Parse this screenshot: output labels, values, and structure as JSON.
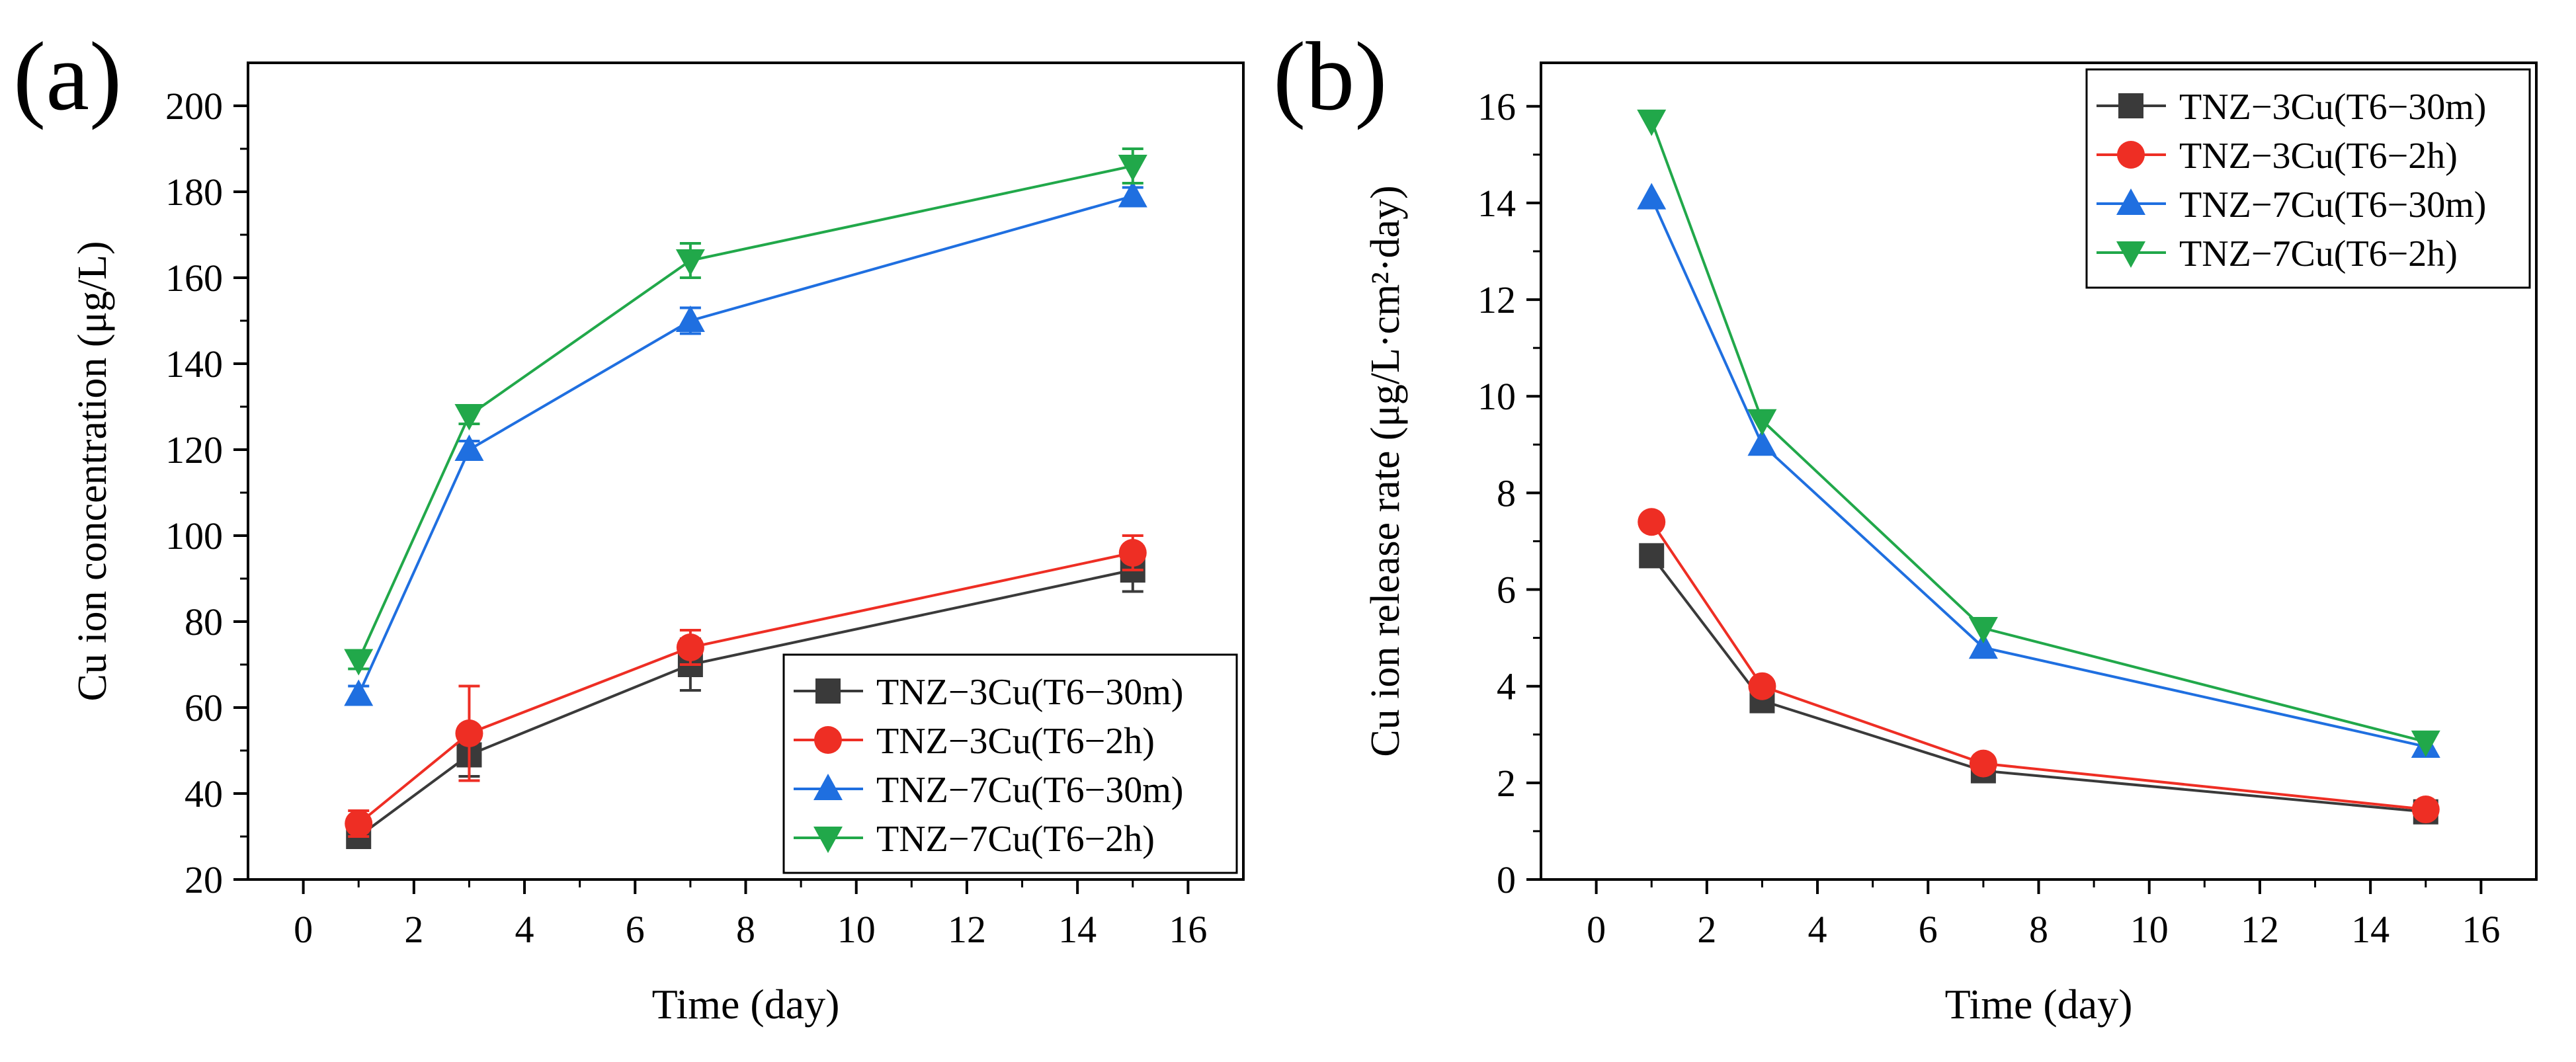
{
  "figure": {
    "panels": [
      {
        "id": "a",
        "letter": "(a)"
      },
      {
        "id": "b",
        "letter": "(b)"
      }
    ]
  },
  "colors": {
    "black": "#3a3a3a",
    "red": "#ee2e24",
    "blue": "#1f6fe0",
    "green": "#21a84a"
  },
  "chart_data": [
    {
      "type": "line",
      "panel": "(a)",
      "title": "",
      "xlabel": "Time (day)",
      "ylabel": "Cu ion concentration (μg/L)",
      "xlim": [
        -1,
        17
      ],
      "ylim": [
        20,
        210
      ],
      "xticks": [
        0,
        2,
        4,
        6,
        8,
        10,
        12,
        14,
        16
      ],
      "yticks": [
        20,
        40,
        60,
        80,
        100,
        120,
        140,
        160,
        180,
        200
      ],
      "legend_position": "bottom-right",
      "x": [
        1,
        3,
        7,
        15
      ],
      "series": [
        {
          "name": "TNZ−3Cu(T6−30m)",
          "color": "black",
          "marker": "square",
          "values": [
            30,
            49,
            70,
            92
          ],
          "errors": [
            2,
            5,
            6,
            5
          ]
        },
        {
          "name": "TNZ−3Cu(T6−2h)",
          "color": "red",
          "marker": "circle",
          "values": [
            33,
            54,
            74,
            96
          ],
          "errors": [
            3,
            11,
            4,
            4
          ]
        },
        {
          "name": "TNZ−7Cu(T6−30m)",
          "color": "blue",
          "marker": "triangle-up",
          "values": [
            63,
            120,
            150,
            179
          ],
          "errors": [
            2,
            2,
            3,
            2
          ]
        },
        {
          "name": "TNZ−7Cu(T6−2h)",
          "color": "green",
          "marker": "triangle-down",
          "values": [
            71,
            128,
            164,
            186
          ],
          "errors": [
            2,
            2,
            4,
            4
          ]
        }
      ]
    },
    {
      "type": "line",
      "panel": "(b)",
      "title": "",
      "xlabel": "Time (day)",
      "ylabel": "Cu ion release rate (μg/L·cm²·day)",
      "xlim": [
        -1,
        17
      ],
      "ylim": [
        0,
        16.9
      ],
      "xticks": [
        0,
        2,
        4,
        6,
        8,
        10,
        12,
        14,
        16
      ],
      "yticks": [
        0,
        2,
        4,
        6,
        8,
        10,
        12,
        14,
        16
      ],
      "legend_position": "top-right",
      "x": [
        1,
        3,
        7,
        15
      ],
      "series": [
        {
          "name": "TNZ−3Cu(T6−30m)",
          "color": "black",
          "marker": "square",
          "values": [
            6.7,
            3.7,
            2.25,
            1.4
          ]
        },
        {
          "name": "TNZ−3Cu(T6−2h)",
          "color": "red",
          "marker": "circle",
          "values": [
            7.4,
            4.0,
            2.4,
            1.45
          ]
        },
        {
          "name": "TNZ−7Cu(T6−30m)",
          "color": "blue",
          "marker": "triangle-up",
          "values": [
            14.1,
            9.0,
            4.8,
            2.75
          ]
        },
        {
          "name": "TNZ−7Cu(T6−2h)",
          "color": "green",
          "marker": "triangle-down",
          "values": [
            15.7,
            9.5,
            5.2,
            2.85
          ]
        }
      ]
    }
  ]
}
